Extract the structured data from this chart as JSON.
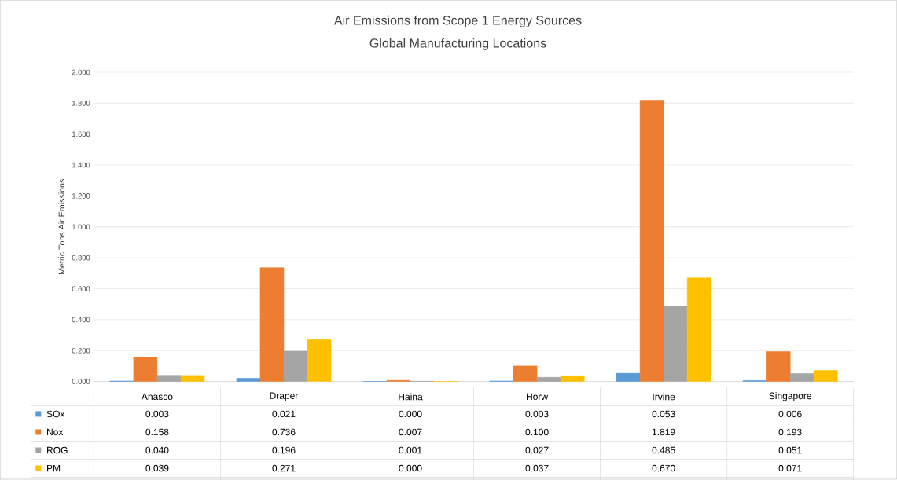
{
  "chart_data": {
    "type": "bar",
    "title": "Air Emissions from Scope 1 Energy Sources",
    "subtitle": "Global Manufacturing Locations",
    "ylabel": "Metric Tons Air Emissions",
    "categories": [
      "Anasco",
      "Draper",
      "Haina",
      "Horw",
      "Irvine",
      "Singapore"
    ],
    "series": [
      {
        "name": "SOx",
        "color": "#5b9bd5",
        "values": [
          0.003,
          0.021,
          0.0,
          0.003,
          0.053,
          0.006
        ],
        "value_labels": [
          "0.003",
          "0.021",
          "0.000",
          "0.003",
          "0.053",
          "0.006"
        ]
      },
      {
        "name": "Nox",
        "color": "#ed7d31",
        "values": [
          0.158,
          0.736,
          0.007,
          0.1,
          1.819,
          0.193
        ],
        "value_labels": [
          "0.158",
          "0.736",
          "0.007",
          "0.100",
          "1.819",
          "0.193"
        ]
      },
      {
        "name": "ROG",
        "color": "#a5a5a5",
        "values": [
          0.04,
          0.196,
          0.001,
          0.027,
          0.485,
          0.051
        ],
        "value_labels": [
          "0.040",
          "0.196",
          "0.001",
          "0.027",
          "0.485",
          "0.051"
        ]
      },
      {
        "name": "PM",
        "color": "#ffc000",
        "values": [
          0.039,
          0.271,
          0.0,
          0.037,
          0.67,
          0.071
        ],
        "value_labels": [
          "0.039",
          "0.271",
          "0.000",
          "0.037",
          "0.670",
          "0.071"
        ]
      }
    ],
    "ylim": [
      0,
      2
    ],
    "yticks": [
      {
        "value": 0,
        "label": "0.000"
      },
      {
        "value": 0.2,
        "label": "0.200"
      },
      {
        "value": 0.4,
        "label": "0.400"
      },
      {
        "value": 0.6,
        "label": "0.600"
      },
      {
        "value": 0.8,
        "label": "0.800"
      },
      {
        "value": 1.0,
        "label": "1.000"
      },
      {
        "value": 1.2,
        "label": "1.200"
      },
      {
        "value": 1.4,
        "label": "1.400"
      },
      {
        "value": 1.6,
        "label": "1.600"
      },
      {
        "value": 1.8,
        "label": "1.800"
      },
      {
        "value": 2.0,
        "label": "2.000"
      }
    ],
    "grid": "y",
    "legend": "bottom"
  }
}
